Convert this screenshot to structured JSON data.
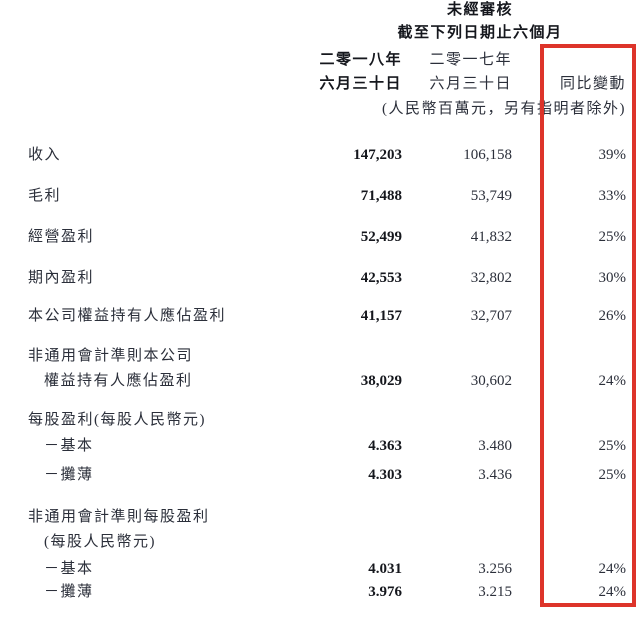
{
  "header": {
    "title_line1": "未經審核",
    "title_line2": "截至下列日期止六個月",
    "note": "(人民幣百萬元，另有指明者除外)"
  },
  "columns": {
    "col_2018": {
      "line1": "二零一八年",
      "line2": "六月三十日"
    },
    "col_2017": {
      "line1": "二零一七年",
      "line2": "六月三十日"
    },
    "col_yoy": {
      "label": "同比變動"
    }
  },
  "highlight": {
    "color": "#dd342a"
  },
  "rows": [
    {
      "lines": [
        "收入"
      ],
      "indent_lines": [
        false
      ],
      "v2018": "147,203",
      "v2017": "106,158",
      "yoy": "39%"
    },
    {
      "lines": [
        "毛利"
      ],
      "indent_lines": [
        false
      ],
      "v2018": "71,488",
      "v2017": "53,749",
      "yoy": "33%"
    },
    {
      "lines": [
        "經營盈利"
      ],
      "indent_lines": [
        false
      ],
      "v2018": "52,499",
      "v2017": "41,832",
      "yoy": "25%"
    },
    {
      "lines": [
        "期內盈利"
      ],
      "indent_lines": [
        false
      ],
      "v2018": "42,553",
      "v2017": "32,802",
      "yoy": "30%"
    },
    {
      "lines": [
        "本公司權益持有人應佔盈利"
      ],
      "indent_lines": [
        false
      ],
      "v2018": "41,157",
      "v2017": "32,707",
      "yoy": "26%"
    },
    {
      "lines": [
        "非通用會計準則本公司",
        "權益持有人應佔盈利"
      ],
      "indent_lines": [
        false,
        true
      ],
      "v2018": "38,029",
      "v2017": "30,602",
      "yoy": "24%"
    },
    {
      "lines": [
        "每股盈利(每股人民幣元)"
      ],
      "indent_lines": [
        false
      ],
      "v2018": "",
      "v2017": "",
      "yoy": ""
    },
    {
      "lines": [
        "－基本"
      ],
      "indent_lines": [
        true
      ],
      "v2018": "4.363",
      "v2017": "3.480",
      "yoy": "25%"
    },
    {
      "lines": [
        "－攤薄"
      ],
      "indent_lines": [
        true
      ],
      "v2018": "4.303",
      "v2017": "3.436",
      "yoy": "25%"
    },
    {
      "lines": [
        "非通用會計準則每股盈利",
        "(每股人民幣元)"
      ],
      "indent_lines": [
        false,
        true
      ],
      "v2018": "",
      "v2017": "",
      "yoy": ""
    },
    {
      "lines": [
        "－基本"
      ],
      "indent_lines": [
        true
      ],
      "v2018": "4.031",
      "v2017": "3.256",
      "yoy": "24%"
    },
    {
      "lines": [
        "－攤薄"
      ],
      "indent_lines": [
        true
      ],
      "v2018": "3.976",
      "v2017": "3.215",
      "yoy": "24%"
    }
  ]
}
